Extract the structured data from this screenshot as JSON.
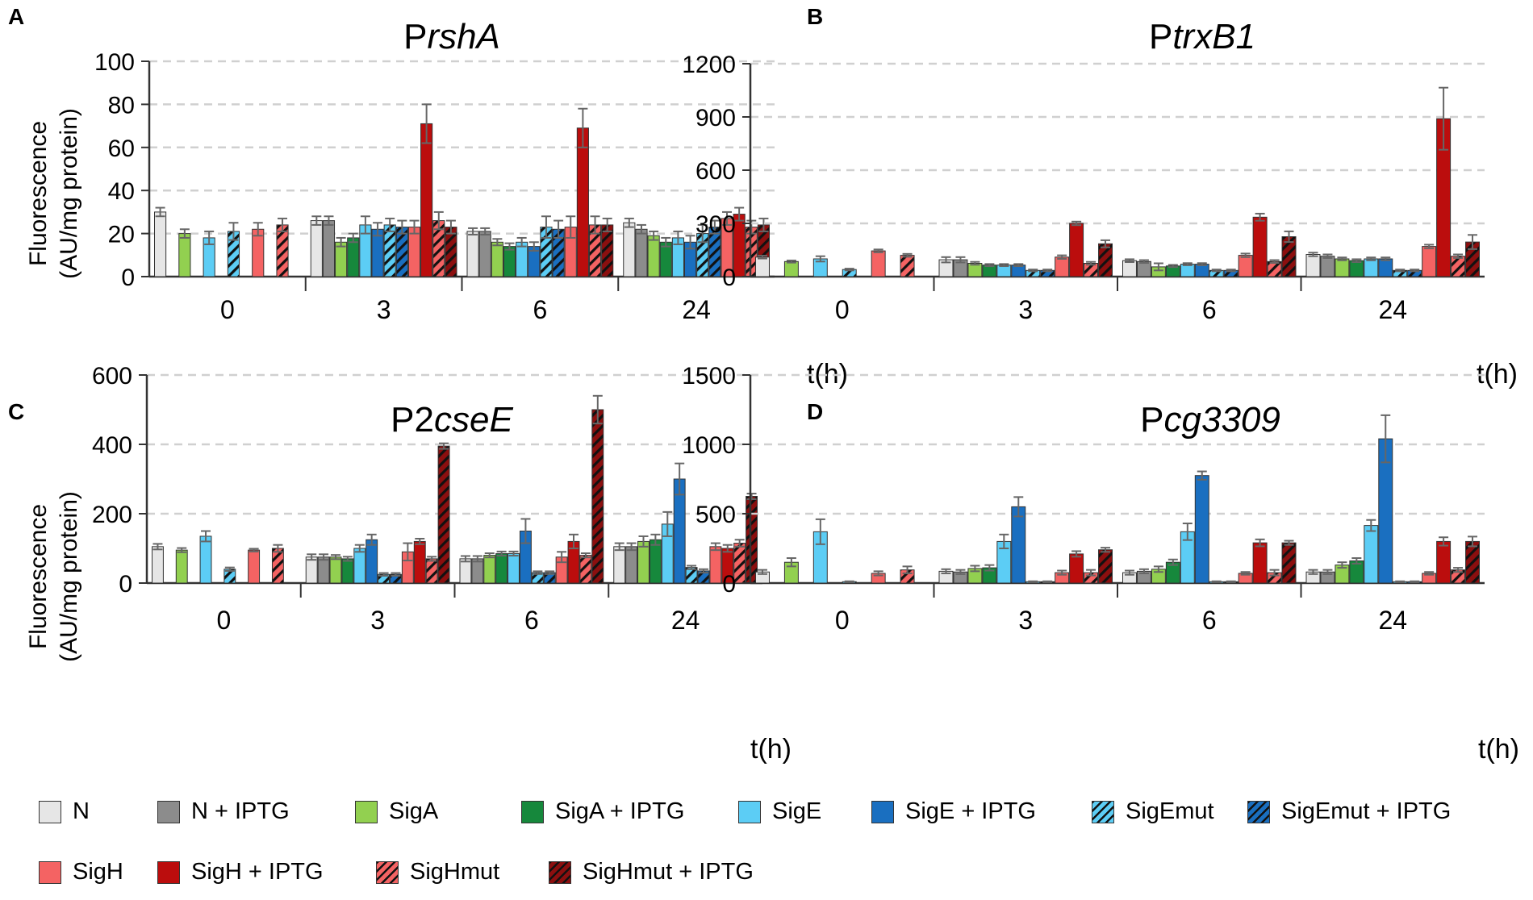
{
  "figure": {
    "ylabel_line1": "Fluorescence",
    "ylabel_line2": "(AU/mg protein)",
    "xunit": "t(h)"
  },
  "series_styles": [
    {
      "name": "N",
      "color": "#e6e6e6",
      "hatch": false
    },
    {
      "name": "N + IPTG",
      "color": "#8c8c8c",
      "hatch": false
    },
    {
      "name": "SigA",
      "color": "#92d050",
      "hatch": false
    },
    {
      "name": "SigA + IPTG",
      "color": "#16883c",
      "hatch": false
    },
    {
      "name": "SigE",
      "color": "#5ccdf5",
      "hatch": false
    },
    {
      "name": "SigE + IPTG",
      "color": "#1a6fc0",
      "hatch": false
    },
    {
      "name": "SigEmut",
      "color": "#5ccdf5",
      "hatch": true
    },
    {
      "name": "SigEmut + IPTG",
      "color": "#1a6fc0",
      "hatch": true
    },
    {
      "name": "SigH",
      "color": "#f46363",
      "hatch": false
    },
    {
      "name": "SigH + IPTG",
      "color": "#bb0d0d",
      "hatch": false
    },
    {
      "name": "SigHmut",
      "color": "#f46363",
      "hatch": true
    },
    {
      "name": "SigHmut + IPTG",
      "color": "#8b0f0f",
      "hatch": true
    }
  ],
  "chart_data": [
    {
      "panel": "A",
      "type": "bar",
      "title_prefix": "P",
      "title_italic": "rshA",
      "categories": [
        "0",
        "3",
        "6",
        "24"
      ],
      "ylim": [
        0,
        100
      ],
      "yticks": [
        0,
        20,
        40,
        60,
        80,
        100
      ],
      "grid": true,
      "series": [
        {
          "name": "N",
          "values": [
            30,
            26,
            21,
            25
          ],
          "errors": [
            2,
            2,
            1.5,
            2
          ]
        },
        {
          "name": "N + IPTG",
          "values": [
            null,
            26,
            21,
            22
          ],
          "errors": [
            0,
            2,
            1.5,
            2
          ]
        },
        {
          "name": "SigA",
          "values": [
            20,
            16,
            16,
            19
          ],
          "errors": [
            2,
            2,
            1.5,
            2
          ]
        },
        {
          "name": "SigA + IPTG",
          "values": [
            null,
            18,
            14,
            16
          ],
          "errors": [
            0,
            2,
            1.5,
            2
          ]
        },
        {
          "name": "SigE",
          "values": [
            18,
            24,
            16,
            18
          ],
          "errors": [
            3,
            4,
            2,
            3
          ]
        },
        {
          "name": "SigE + IPTG",
          "values": [
            null,
            22,
            14,
            16
          ],
          "errors": [
            0,
            3,
            2,
            3
          ]
        },
        {
          "name": "SigEmut",
          "values": [
            21,
            24,
            23,
            20
          ],
          "errors": [
            4,
            3,
            5,
            4
          ]
        },
        {
          "name": "SigEmut + IPTG",
          "values": [
            null,
            23,
            22,
            23
          ],
          "errors": [
            0,
            3,
            4,
            3
          ]
        },
        {
          "name": "SigH",
          "values": [
            22,
            23,
            23,
            27
          ],
          "errors": [
            3,
            3,
            5,
            3
          ]
        },
        {
          "name": "SigH + IPTG",
          "values": [
            null,
            71,
            69,
            29
          ],
          "errors": [
            0,
            9,
            9,
            3
          ]
        },
        {
          "name": "SigHmut",
          "values": [
            24,
            26,
            24,
            23
          ],
          "errors": [
            3,
            4,
            4,
            3
          ]
        },
        {
          "name": "SigHmut + IPTG",
          "values": [
            null,
            23,
            24,
            24
          ],
          "errors": [
            0,
            3,
            3,
            3
          ]
        }
      ]
    },
    {
      "panel": "B",
      "type": "bar",
      "title_prefix": "P",
      "title_italic": "trxB1",
      "categories": [
        "0",
        "3",
        "6",
        "24"
      ],
      "ylim": [
        0,
        1200
      ],
      "yticks": [
        0,
        300,
        600,
        900,
        1200
      ],
      "grid": true,
      "series": [
        {
          "name": "N",
          "values": [
            110,
            95,
            90,
            125
          ],
          "errors": [
            8,
            15,
            8,
            10
          ]
        },
        {
          "name": "N + IPTG",
          "values": [
            null,
            95,
            85,
            115
          ],
          "errors": [
            0,
            15,
            8,
            10
          ]
        },
        {
          "name": "SigA",
          "values": [
            85,
            75,
            55,
            100
          ],
          "errors": [
            6,
            8,
            20,
            8
          ]
        },
        {
          "name": "SigA + IPTG",
          "values": [
            null,
            65,
            60,
            90
          ],
          "errors": [
            0,
            6,
            6,
            8
          ]
        },
        {
          "name": "SigE",
          "values": [
            100,
            65,
            70,
            100
          ],
          "errors": [
            15,
            6,
            6,
            8
          ]
        },
        {
          "name": "SigE + IPTG",
          "values": [
            null,
            65,
            70,
            100
          ],
          "errors": [
            0,
            6,
            6,
            8
          ]
        },
        {
          "name": "SigEmut",
          "values": [
            40,
            35,
            35,
            35
          ],
          "errors": [
            5,
            5,
            5,
            5
          ]
        },
        {
          "name": "SigEmut + IPTG",
          "values": [
            null,
            35,
            35,
            35
          ],
          "errors": [
            0,
            5,
            5,
            5
          ]
        },
        {
          "name": "SigH",
          "values": [
            145,
            110,
            120,
            170
          ],
          "errors": [
            8,
            10,
            10,
            10
          ]
        },
        {
          "name": "SigH + IPTG",
          "values": [
            null,
            300,
            335,
            890
          ],
          "errors": [
            0,
            10,
            20,
            175
          ]
        },
        {
          "name": "SigHmut",
          "values": [
            120,
            75,
            85,
            115
          ],
          "errors": [
            8,
            8,
            8,
            10
          ]
        },
        {
          "name": "SigHmut + IPTG",
          "values": [
            null,
            185,
            225,
            195
          ],
          "errors": [
            0,
            20,
            30,
            40
          ]
        }
      ]
    },
    {
      "panel": "C",
      "type": "bar",
      "title_prefix": "P2",
      "title_italic": "cseE",
      "categories": [
        "0",
        "3",
        "6",
        "24"
      ],
      "ylim": [
        0,
        600
      ],
      "yticks": [
        0,
        200,
        400,
        600
      ],
      "grid": true,
      "series": [
        {
          "name": "N",
          "values": [
            105,
            75,
            70,
            105
          ],
          "errors": [
            8,
            8,
            8,
            10
          ]
        },
        {
          "name": "N + IPTG",
          "values": [
            null,
            75,
            70,
            105
          ],
          "errors": [
            0,
            8,
            8,
            10
          ]
        },
        {
          "name": "SigA",
          "values": [
            95,
            75,
            80,
            120
          ],
          "errors": [
            6,
            6,
            6,
            15
          ]
        },
        {
          "name": "SigA + IPTG",
          "values": [
            null,
            70,
            85,
            125
          ],
          "errors": [
            0,
            6,
            6,
            15
          ]
        },
        {
          "name": "SigE",
          "values": [
            135,
            100,
            85,
            170
          ],
          "errors": [
            15,
            10,
            6,
            35
          ]
        },
        {
          "name": "SigE + IPTG",
          "values": [
            null,
            125,
            150,
            300
          ],
          "errors": [
            0,
            15,
            35,
            45
          ]
        },
        {
          "name": "SigEmut",
          "values": [
            40,
            25,
            30,
            45
          ],
          "errors": [
            5,
            4,
            4,
            5
          ]
        },
        {
          "name": "SigEmut + IPTG",
          "values": [
            null,
            25,
            30,
            35
          ],
          "errors": [
            0,
            4,
            4,
            5
          ]
        },
        {
          "name": "SigH",
          "values": [
            95,
            90,
            75,
            105
          ],
          "errors": [
            4,
            25,
            15,
            10
          ]
        },
        {
          "name": "SigH + IPTG",
          "values": [
            null,
            120,
            120,
            100
          ],
          "errors": [
            0,
            8,
            20,
            10
          ]
        },
        {
          "name": "SigHmut",
          "values": [
            100,
            70,
            80,
            115
          ],
          "errors": [
            10,
            6,
            6,
            10
          ]
        },
        {
          "name": "SigHmut + IPTG",
          "values": [
            null,
            395,
            500,
            250
          ],
          "errors": [
            0,
            8,
            40,
            8
          ]
        }
      ]
    },
    {
      "panel": "D",
      "type": "bar",
      "title_prefix": "P",
      "title_italic": "cg3309",
      "categories": [
        "0",
        "3",
        "6",
        "24"
      ],
      "ylim": [
        0,
        1500
      ],
      "yticks": [
        0,
        500,
        1000,
        1500
      ],
      "grid": true,
      "series": [
        {
          "name": "N",
          "values": [
            80,
            85,
            75,
            80
          ],
          "errors": [
            15,
            15,
            15,
            15
          ]
        },
        {
          "name": "N + IPTG",
          "values": [
            null,
            80,
            85,
            80
          ],
          "errors": [
            0,
            15,
            15,
            15
          ]
        },
        {
          "name": "SigA",
          "values": [
            150,
            105,
            100,
            130
          ],
          "errors": [
            30,
            20,
            20,
            20
          ]
        },
        {
          "name": "SigA + IPTG",
          "values": [
            null,
            110,
            150,
            160
          ],
          "errors": [
            0,
            20,
            20,
            20
          ]
        },
        {
          "name": "SigE",
          "values": [
            370,
            300,
            370,
            415
          ],
          "errors": [
            90,
            50,
            60,
            40
          ]
        },
        {
          "name": "SigE + IPTG",
          "values": [
            null,
            550,
            775,
            1040
          ],
          "errors": [
            0,
            70,
            30,
            170
          ]
        },
        {
          "name": "SigEmut",
          "values": [
            10,
            10,
            10,
            10
          ],
          "errors": [
            3,
            3,
            3,
            3
          ]
        },
        {
          "name": "SigEmut + IPTG",
          "values": [
            null,
            10,
            10,
            10
          ],
          "errors": [
            0,
            3,
            3,
            3
          ]
        },
        {
          "name": "SigH",
          "values": [
            70,
            75,
            70,
            70
          ],
          "errors": [
            15,
            15,
            10,
            10
          ]
        },
        {
          "name": "SigH + IPTG",
          "values": [
            null,
            210,
            290,
            300
          ],
          "errors": [
            0,
            20,
            25,
            30
          ]
        },
        {
          "name": "SigHmut",
          "values": [
            95,
            75,
            75,
            95
          ],
          "errors": [
            25,
            20,
            20,
            15
          ]
        },
        {
          "name": "SigHmut + IPTG",
          "values": [
            null,
            240,
            290,
            300
          ],
          "errors": [
            0,
            15,
            15,
            35
          ]
        }
      ]
    }
  ]
}
